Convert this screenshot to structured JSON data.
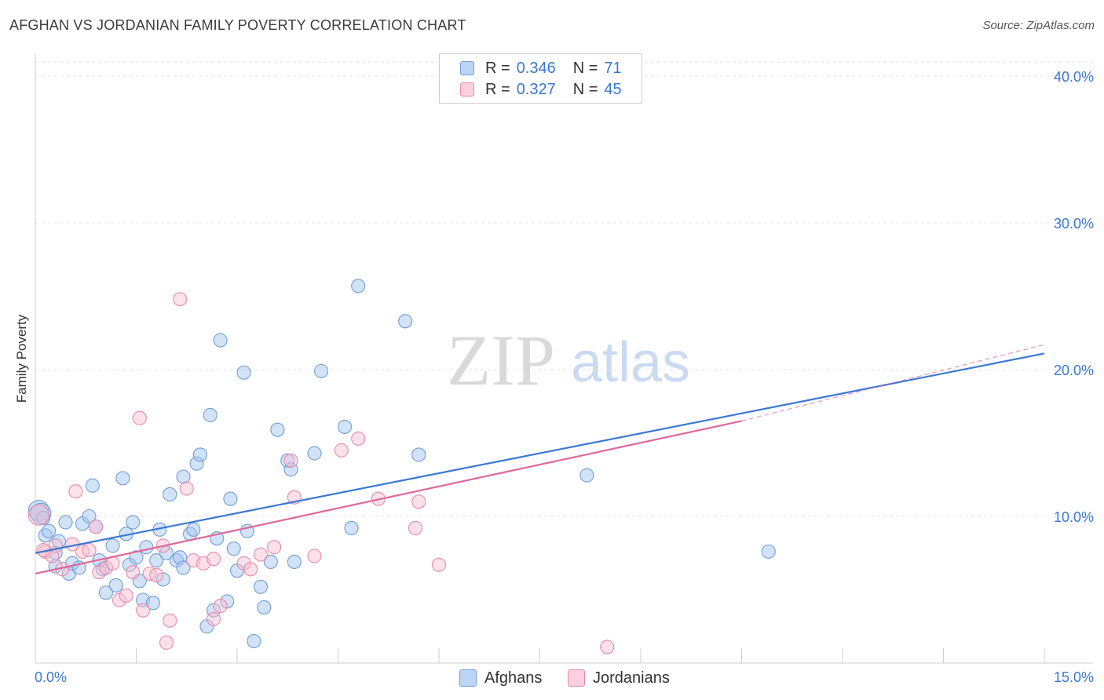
{
  "title": "AFGHAN VS JORDANIAN FAMILY POVERTY CORRELATION CHART",
  "source": "Source: ZipAtlas.com",
  "watermark": {
    "zip": "ZIP",
    "atlas": "atlas"
  },
  "colors": {
    "blue_fill": "#a8c8f0",
    "blue_stroke": "#6f9ed8",
    "blue_line": "#3b78d4",
    "pink_fill": "#f8bcd0",
    "pink_stroke": "#e88aa8",
    "pink_line": "#e0679a",
    "axis_text": "#3b77d1"
  },
  "legend": {
    "rows": [
      {
        "r_label": "R =",
        "r_value": "0.346",
        "n_label": "N =",
        "n_value": "71"
      },
      {
        "r_label": "R =",
        "r_value": "0.327",
        "n_label": "N =",
        "n_value": "45"
      }
    ]
  },
  "bottom_legend": {
    "afghans": "Afghans",
    "jordanians": "Jordanians"
  },
  "chart_data": {
    "type": "scatter",
    "xlabel": "",
    "ylabel": "Family Poverty",
    "xlim": [
      0,
      15
    ],
    "ylim": [
      0,
      40
    ],
    "x_tick_labels": [
      {
        "value": 0,
        "label": "0.0%"
      },
      {
        "value": 15,
        "label": "15.0%"
      }
    ],
    "y_tick_labels": [
      {
        "value": 10,
        "label": "10.0%"
      },
      {
        "value": 20,
        "label": "20.0%"
      },
      {
        "value": 30,
        "label": "30.0%"
      },
      {
        "value": 40,
        "label": "40.0%"
      }
    ],
    "x_minor_ticks": [
      1.5,
      3,
      4.5,
      6,
      7.5,
      9,
      10.5,
      12,
      13.5,
      15
    ],
    "gridlines": true,
    "series": [
      {
        "name": "Afghans",
        "color": "blue",
        "regression": {
          "x0": 0,
          "y0": 7.5,
          "x1": 15,
          "y1": 21.1,
          "dash_to": null
        },
        "points": [
          [
            0.05,
            10.4
          ],
          [
            0.15,
            8.7
          ],
          [
            0.2,
            9.0
          ],
          [
            0.3,
            6.6
          ],
          [
            0.3,
            7.5
          ],
          [
            0.35,
            8.3
          ],
          [
            0.45,
            9.6
          ],
          [
            0.5,
            6.1
          ],
          [
            0.55,
            6.8
          ],
          [
            0.65,
            6.5
          ],
          [
            0.7,
            9.5
          ],
          [
            0.8,
            10.0
          ],
          [
            0.85,
            12.1
          ],
          [
            0.9,
            9.3
          ],
          [
            0.95,
            7.0
          ],
          [
            1.0,
            6.4
          ],
          [
            1.05,
            4.8
          ],
          [
            1.15,
            8.0
          ],
          [
            1.2,
            5.3
          ],
          [
            1.3,
            12.6
          ],
          [
            1.35,
            8.8
          ],
          [
            1.4,
            6.7
          ],
          [
            1.45,
            9.6
          ],
          [
            1.5,
            7.2
          ],
          [
            1.55,
            5.6
          ],
          [
            1.6,
            4.3
          ],
          [
            1.65,
            7.9
          ],
          [
            1.75,
            4.1
          ],
          [
            1.8,
            7.0
          ],
          [
            1.85,
            9.1
          ],
          [
            1.9,
            5.7
          ],
          [
            1.95,
            7.5
          ],
          [
            2.0,
            11.5
          ],
          [
            2.1,
            7.0
          ],
          [
            2.15,
            7.2
          ],
          [
            2.2,
            6.5
          ],
          [
            2.2,
            12.7
          ],
          [
            2.3,
            8.8
          ],
          [
            2.35,
            9.1
          ],
          [
            2.4,
            13.6
          ],
          [
            2.45,
            14.2
          ],
          [
            2.55,
            2.5
          ],
          [
            2.6,
            16.9
          ],
          [
            2.65,
            3.6
          ],
          [
            2.7,
            8.5
          ],
          [
            2.75,
            22.0
          ],
          [
            2.85,
            4.2
          ],
          [
            2.9,
            11.2
          ],
          [
            2.95,
            7.8
          ],
          [
            3.0,
            6.3
          ],
          [
            3.1,
            19.8
          ],
          [
            3.15,
            9.0
          ],
          [
            3.25,
            1.5
          ],
          [
            3.35,
            5.2
          ],
          [
            3.4,
            3.8
          ],
          [
            3.5,
            6.9
          ],
          [
            3.6,
            15.9
          ],
          [
            3.75,
            13.8
          ],
          [
            3.8,
            13.2
          ],
          [
            3.85,
            6.9
          ],
          [
            4.15,
            14.3
          ],
          [
            4.25,
            19.9
          ],
          [
            4.6,
            16.1
          ],
          [
            4.7,
            9.2
          ],
          [
            4.8,
            25.7
          ],
          [
            5.5,
            23.3
          ],
          [
            5.7,
            14.2
          ],
          [
            8.2,
            12.8
          ],
          [
            10.9,
            7.6
          ],
          [
            0.08,
            10.2
          ],
          [
            0.12,
            9.9
          ]
        ]
      },
      {
        "name": "Jordanians",
        "color": "pink",
        "regression": {
          "x0": 0,
          "y0": 6.1,
          "x1": 10.5,
          "y1": 16.5,
          "dash_to": [
            15,
            21.7
          ]
        },
        "points": [
          [
            0.05,
            10.1
          ],
          [
            0.15,
            7.6
          ],
          [
            0.25,
            7.3
          ],
          [
            0.3,
            8.0
          ],
          [
            0.4,
            6.4
          ],
          [
            0.55,
            8.1
          ],
          [
            0.6,
            11.7
          ],
          [
            0.7,
            7.6
          ],
          [
            0.8,
            7.7
          ],
          [
            0.9,
            9.3
          ],
          [
            0.95,
            6.2
          ],
          [
            1.05,
            6.5
          ],
          [
            1.15,
            6.8
          ],
          [
            1.25,
            4.3
          ],
          [
            1.35,
            4.6
          ],
          [
            1.45,
            6.2
          ],
          [
            1.55,
            16.7
          ],
          [
            1.6,
            3.6
          ],
          [
            1.7,
            6.1
          ],
          [
            1.8,
            6.0
          ],
          [
            1.9,
            8.0
          ],
          [
            1.95,
            1.4
          ],
          [
            2.0,
            2.9
          ],
          [
            2.15,
            24.8
          ],
          [
            2.25,
            11.9
          ],
          [
            2.35,
            7.0
          ],
          [
            2.5,
            6.8
          ],
          [
            2.65,
            7.1
          ],
          [
            2.75,
            3.9
          ],
          [
            2.65,
            3.0
          ],
          [
            3.1,
            6.8
          ],
          [
            3.2,
            6.4
          ],
          [
            3.35,
            7.4
          ],
          [
            3.55,
            7.9
          ],
          [
            3.8,
            13.8
          ],
          [
            3.85,
            11.3
          ],
          [
            4.15,
            7.3
          ],
          [
            4.55,
            14.5
          ],
          [
            4.8,
            15.3
          ],
          [
            5.1,
            11.2
          ],
          [
            5.65,
            9.2
          ],
          [
            5.7,
            11.0
          ],
          [
            6.0,
            6.7
          ],
          [
            8.5,
            1.1
          ],
          [
            0.12,
            7.7
          ]
        ]
      }
    ]
  }
}
